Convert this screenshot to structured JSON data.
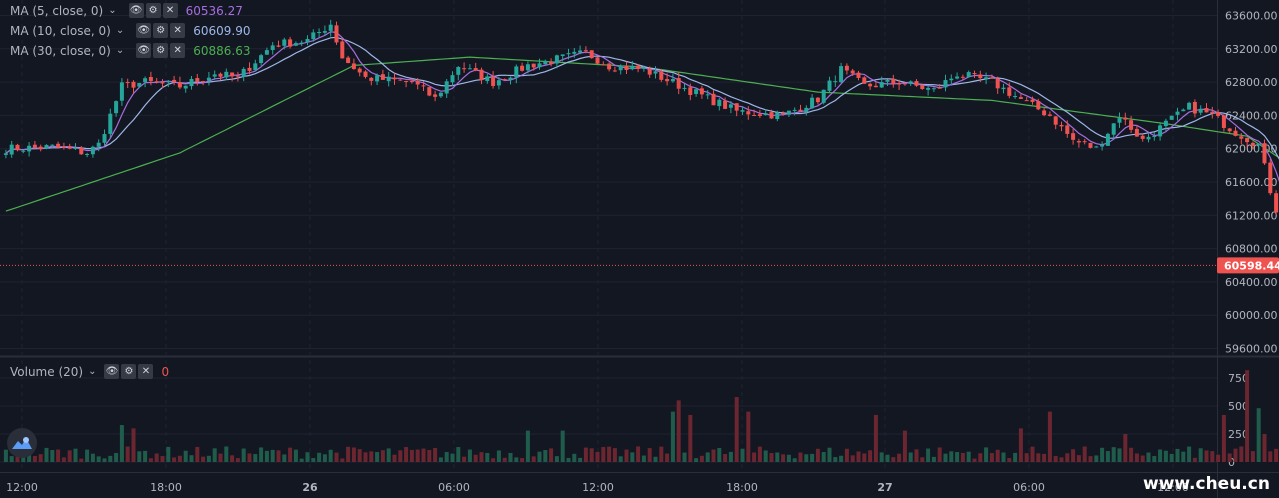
{
  "legend": {
    "ma5": {
      "label": "MA (5, close, 0)",
      "value": "60536.27",
      "color": "#a66ee0"
    },
    "ma10": {
      "label": "MA (10, close, 0)",
      "value": "60609.90",
      "color": "#9fb7e8"
    },
    "ma30": {
      "label": "MA (30, close, 0)",
      "value": "60886.63",
      "color": "#4caf50"
    },
    "volume": {
      "label": "Volume (20)",
      "value": "0",
      "color": "#ef5350"
    },
    "buttons": {
      "eye": "👁",
      "gear": "⚙",
      "close": "✕"
    }
  },
  "chart_data": {
    "type": "candlestick",
    "last_price_label": "60598.44",
    "colors": {
      "up": "#26a69a",
      "down": "#ef5350",
      "vol_up": "#1f5c4c",
      "vol_down": "#6b2630",
      "ma5": "#a66ee0",
      "ma10": "#9fb7e8",
      "ma30": "#4caf50"
    },
    "price_axis": {
      "min": 59600,
      "max": 63600,
      "ticks": [
        "63600.00",
        "63200.00",
        "62800.00",
        "62400.00",
        "62000.00",
        "61600.00",
        "61200.00",
        "60800.00",
        "60400.00",
        "60000.00",
        "59600.00"
      ]
    },
    "volume_axis": {
      "min": 0,
      "max": 750,
      "ticks": [
        "750",
        "500",
        "250",
        "0"
      ]
    },
    "time_labels": [
      "12:00",
      "18:00",
      "26",
      "06:00",
      "12:00",
      "18:00",
      "27",
      "06:00",
      "12:00"
    ],
    "anchors": [
      [
        0,
        62000
      ],
      [
        8,
        62020
      ],
      [
        14,
        61950
      ],
      [
        16,
        62050
      ],
      [
        20,
        62750
      ],
      [
        24,
        62800
      ],
      [
        30,
        62750
      ],
      [
        36,
        62900
      ],
      [
        40,
        62850
      ],
      [
        46,
        63250
      ],
      [
        52,
        63300
      ],
      [
        56,
        63500
      ],
      [
        58,
        63100
      ],
      [
        62,
        62850
      ],
      [
        70,
        62800
      ],
      [
        74,
        62600
      ],
      [
        78,
        63000
      ],
      [
        84,
        62800
      ],
      [
        90,
        63000
      ],
      [
        100,
        63150
      ],
      [
        104,
        63000
      ],
      [
        110,
        62950
      ],
      [
        118,
        62700
      ],
      [
        126,
        62450
      ],
      [
        134,
        62400
      ],
      [
        140,
        62600
      ],
      [
        144,
        62950
      ],
      [
        148,
        62750
      ],
      [
        154,
        62800
      ],
      [
        160,
        62700
      ],
      [
        164,
        62900
      ],
      [
        170,
        62800
      ],
      [
        176,
        62550
      ],
      [
        180,
        62400
      ],
      [
        184,
        62100
      ],
      [
        188,
        62000
      ],
      [
        192,
        62400
      ],
      [
        196,
        62100
      ],
      [
        200,
        62300
      ],
      [
        204,
        62500
      ],
      [
        208,
        62400
      ],
      [
        212,
        62200
      ],
      [
        216,
        62050
      ],
      [
        218,
        61500
      ],
      [
        222,
        60600
      ],
      [
        226,
        60400
      ],
      [
        230,
        60500
      ],
      [
        234,
        60400
      ],
      [
        238,
        60800
      ],
      [
        242,
        60700
      ],
      [
        246,
        60550
      ],
      [
        248,
        60500
      ],
      [
        250,
        60600
      ]
    ],
    "ma30_anchors": [
      [
        0,
        61250
      ],
      [
        30,
        61950
      ],
      [
        60,
        63000
      ],
      [
        80,
        63100
      ],
      [
        110,
        62980
      ],
      [
        140,
        62680
      ],
      [
        170,
        62580
      ],
      [
        200,
        62300
      ],
      [
        214,
        62150
      ],
      [
        230,
        61400
      ],
      [
        250,
        60880
      ]
    ],
    "volume_spikes": [
      [
        20,
        330
      ],
      [
        22,
        300
      ],
      [
        90,
        280
      ],
      [
        96,
        280
      ],
      [
        115,
        450
      ],
      [
        116,
        550
      ],
      [
        118,
        420
      ],
      [
        126,
        580
      ],
      [
        128,
        450
      ],
      [
        150,
        420
      ],
      [
        155,
        280
      ],
      [
        175,
        300
      ],
      [
        180,
        450
      ],
      [
        193,
        250
      ],
      [
        210,
        420
      ],
      [
        214,
        820
      ],
      [
        216,
        480
      ],
      [
        217,
        250
      ],
      [
        220,
        530
      ],
      [
        224,
        300
      ],
      [
        226,
        330
      ],
      [
        238,
        270
      ],
      [
        246,
        550
      ]
    ]
  },
  "watermark": "www.cheu.cn"
}
